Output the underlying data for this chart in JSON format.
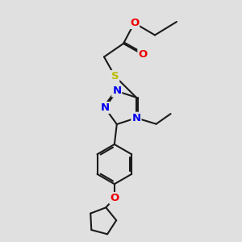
{
  "background_color": "#e0e0e0",
  "bond_color": "#1a1a1a",
  "bond_lw": 1.5,
  "dbo": 0.055,
  "atom_colors": {
    "N": "#0000ee",
    "O": "#ee0000",
    "S": "#bbbb00"
  },
  "fs": 9.5,
  "fig_w": 3.0,
  "fig_h": 3.0,
  "dpi": 100,
  "xlim": [
    0,
    10
  ],
  "ylim": [
    0,
    10
  ]
}
